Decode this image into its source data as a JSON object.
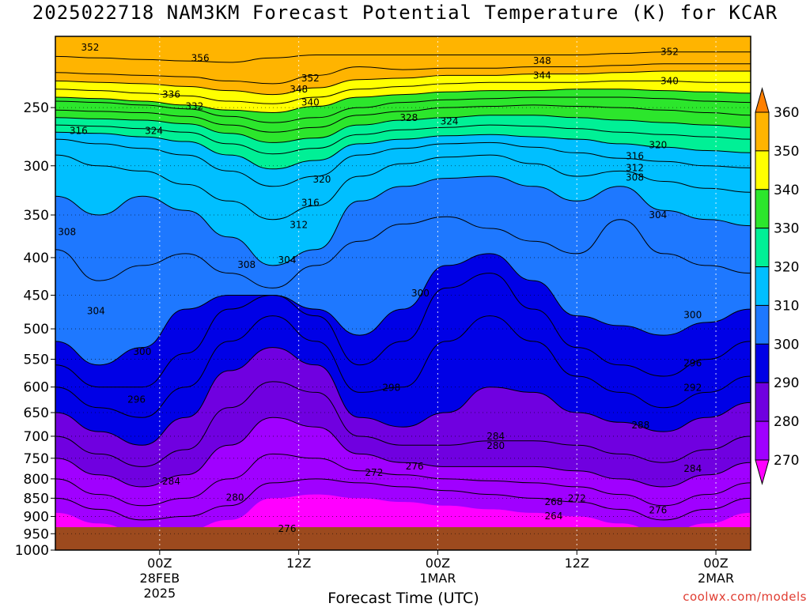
{
  "title": "2025022718 NAM3KM Forecast Potential Temperature (K) for KCAR",
  "xlabel": "Forecast Time (UTC)",
  "credit": "coolwx.com/models",
  "chart_data": {
    "type": "heatmap",
    "title": "2025022718 NAM3KM Forecast Potential Temperature (K) for KCAR",
    "xlabel": "Forecast Time (UTC)",
    "ylabel": "",
    "x_range_hours": [
      -3,
      57
    ],
    "y_range_hpa": [
      200,
      1000
    ],
    "y_scale": "log",
    "yticks": [
      250,
      300,
      350,
      400,
      450,
      500,
      550,
      600,
      650,
      700,
      750,
      800,
      850,
      900,
      950,
      1000
    ],
    "xticks": [
      {
        "hour": 6,
        "lines": [
          "00Z",
          "28FEB",
          "2025"
        ]
      },
      {
        "hour": 18,
        "lines": [
          "12Z"
        ]
      },
      {
        "hour": 30,
        "lines": [
          "00Z",
          "1MAR"
        ]
      },
      {
        "hour": 42,
        "lines": [
          "12Z"
        ]
      },
      {
        "hour": 54,
        "lines": [
          "00Z",
          "2MAR"
        ]
      }
    ],
    "colorbar": {
      "levels": [
        270,
        280,
        290,
        300,
        310,
        320,
        330,
        340,
        350,
        360
      ],
      "colors": [
        "#ff00ff",
        "#a000ff",
        "#7000e0",
        "#0000e6",
        "#1e78ff",
        "#00bfff",
        "#00f096",
        "#2ce62c",
        "#ffff00",
        "#ffb400",
        "#ff8000"
      ]
    },
    "contour_interval_K": 2,
    "contour_labels": [
      {
        "hour": 0,
        "hpa": 207,
        "value": 352
      },
      {
        "hour": 9.5,
        "hpa": 214,
        "value": 356
      },
      {
        "hour": 19,
        "hpa": 228,
        "value": 352
      },
      {
        "hour": 18,
        "hpa": 236,
        "value": 348
      },
      {
        "hour": 19,
        "hpa": 246,
        "value": 340
      },
      {
        "hour": 7,
        "hpa": 240,
        "value": 336
      },
      {
        "hour": 9,
        "hpa": 249,
        "value": 332
      },
      {
        "hour": 39,
        "hpa": 216,
        "value": 348
      },
      {
        "hour": 39,
        "hpa": 226,
        "value": 344
      },
      {
        "hour": 50,
        "hpa": 210,
        "value": 352
      },
      {
        "hour": 50,
        "hpa": 230,
        "value": 340
      },
      {
        "hour": 27.5,
        "hpa": 258,
        "value": 328
      },
      {
        "hour": 31,
        "hpa": 261,
        "value": 324
      },
      {
        "hour": -1,
        "hpa": 269,
        "value": 316
      },
      {
        "hour": 5.5,
        "hpa": 269,
        "value": 324
      },
      {
        "hour": 49,
        "hpa": 281,
        "value": 320
      },
      {
        "hour": 47,
        "hpa": 291,
        "value": 316
      },
      {
        "hour": 47,
        "hpa": 302,
        "value": 312
      },
      {
        "hour": 47,
        "hpa": 311,
        "value": 308
      },
      {
        "hour": 20,
        "hpa": 313,
        "value": 320
      },
      {
        "hour": 19,
        "hpa": 337,
        "value": 316
      },
      {
        "hour": 18,
        "hpa": 361,
        "value": 312
      },
      {
        "hour": 17,
        "hpa": 403,
        "value": 304
      },
      {
        "hour": 13.5,
        "hpa": 409,
        "value": 308
      },
      {
        "hour": -2,
        "hpa": 369,
        "value": 308
      },
      {
        "hour": 49,
        "hpa": 350,
        "value": 304
      },
      {
        "hour": 0.5,
        "hpa": 473,
        "value": 304
      },
      {
        "hour": 28.5,
        "hpa": 447,
        "value": 300
      },
      {
        "hour": 52,
        "hpa": 479,
        "value": 300
      },
      {
        "hour": 4.5,
        "hpa": 537,
        "value": 300
      },
      {
        "hour": 4,
        "hpa": 624,
        "value": 296
      },
      {
        "hour": 52,
        "hpa": 557,
        "value": 296
      },
      {
        "hour": 52,
        "hpa": 601,
        "value": 292
      },
      {
        "hour": 26,
        "hpa": 601,
        "value": 298
      },
      {
        "hour": 47.5,
        "hpa": 676,
        "value": 288
      },
      {
        "hour": 35,
        "hpa": 700,
        "value": 284
      },
      {
        "hour": 35,
        "hpa": 721,
        "value": 280
      },
      {
        "hour": 7,
        "hpa": 806,
        "value": 284
      },
      {
        "hour": 28,
        "hpa": 769,
        "value": 276
      },
      {
        "hour": 24.5,
        "hpa": 785,
        "value": 272
      },
      {
        "hour": 52,
        "hpa": 775,
        "value": 284
      },
      {
        "hour": 12.5,
        "hpa": 848,
        "value": 280
      },
      {
        "hour": 40,
        "hpa": 860,
        "value": 268
      },
      {
        "hour": 42,
        "hpa": 850,
        "value": 272
      },
      {
        "hour": 40,
        "hpa": 899,
        "value": 264
      },
      {
        "hour": 49,
        "hpa": 883,
        "value": 276
      },
      {
        "hour": 17,
        "hpa": 935,
        "value": 276
      }
    ],
    "isentrope_levels_hpa": [
      {
        "value": 356,
        "hpa": [
          213,
          214,
          215,
          216,
          217,
          214,
          212,
          212,
          212,
          212,
          212,
          212,
          212,
          211,
          210,
          210,
          210
        ]
      },
      {
        "value": 352,
        "hpa": [
          224,
          225,
          226,
          227,
          230,
          232,
          226,
          220,
          222,
          221,
          221,
          220,
          220,
          219,
          218,
          218,
          218
        ]
      },
      {
        "value": 348,
        "hpa": [
          230,
          231,
          232,
          234,
          237,
          240,
          235,
          229,
          228,
          226,
          226,
          225,
          225,
          224,
          223,
          223,
          223
        ]
      },
      {
        "value": 344,
        "hpa": [
          236,
          237,
          239,
          241,
          245,
          247,
          242,
          236,
          234,
          232,
          231,
          231,
          231,
          230,
          230,
          231,
          231
        ]
      },
      {
        "value": 340,
        "hpa": [
          242,
          243,
          245,
          248,
          252,
          254,
          249,
          242,
          240,
          238,
          237,
          237,
          236,
          236,
          237,
          238,
          239
        ]
      },
      {
        "value": 336,
        "hpa": [
          245,
          246,
          248,
          251,
          257,
          262,
          258,
          250,
          246,
          244,
          243,
          242,
          242,
          242,
          243,
          245,
          246
        ]
      },
      {
        "value": 332,
        "hpa": [
          252,
          253,
          254,
          257,
          264,
          270,
          266,
          256,
          253,
          250,
          249,
          248,
          249,
          250,
          252,
          254,
          256
        ]
      },
      {
        "value": 328,
        "hpa": [
          258,
          259,
          260,
          263,
          271,
          279,
          275,
          264,
          260,
          258,
          256,
          256,
          258,
          260,
          262,
          264,
          266
        ]
      },
      {
        "value": 324,
        "hpa": [
          264,
          265,
          267,
          270,
          280,
          289,
          284,
          272,
          268,
          266,
          264,
          265,
          267,
          270,
          272,
          274,
          276
        ]
      },
      {
        "value": 320,
        "hpa": [
          270,
          271,
          274,
          278,
          290,
          303,
          295,
          280,
          276,
          273,
          272,
          274,
          276,
          280,
          283,
          286,
          288
        ]
      },
      {
        "value": 316,
        "hpa": [
          276,
          280,
          284,
          290,
          305,
          320,
          310,
          290,
          284,
          280,
          279,
          283,
          288,
          293,
          296,
          300,
          302
        ]
      },
      {
        "value": 312,
        "hpa": [
          290,
          300,
          305,
          318,
          335,
          355,
          340,
          310,
          298,
          292,
          290,
          298,
          310,
          305,
          315,
          322,
          326
        ]
      },
      {
        "value": 308,
        "hpa": [
          330,
          350,
          330,
          345,
          375,
          410,
          390,
          335,
          320,
          312,
          310,
          320,
          335,
          320,
          345,
          355,
          362
        ]
      },
      {
        "value": 304,
        "hpa": [
          390,
          430,
          410,
          395,
          420,
          440,
          410,
          380,
          360,
          352,
          365,
          380,
          395,
          355,
          395,
          410,
          420
        ]
      },
      {
        "value": 300,
        "hpa": [
          520,
          560,
          530,
          470,
          450,
          450,
          470,
          510,
          470,
          410,
          395,
          430,
          480,
          495,
          510,
          490,
          470
        ]
      },
      {
        "value": 296,
        "hpa": [
          560,
          600,
          600,
          540,
          470,
          450,
          480,
          560,
          520,
          440,
          420,
          470,
          530,
          560,
          580,
          550,
          520
        ]
      },
      {
        "value": 292,
        "hpa": [
          600,
          640,
          660,
          600,
          520,
          480,
          520,
          610,
          600,
          520,
          480,
          520,
          580,
          610,
          640,
          610,
          580
        ]
      },
      {
        "value": 288,
        "hpa": [
          650,
          690,
          720,
          660,
          570,
          530,
          560,
          660,
          680,
          650,
          600,
          610,
          650,
          670,
          690,
          660,
          630
        ]
      },
      {
        "value": 284,
        "hpa": [
          700,
          740,
          770,
          730,
          640,
          590,
          610,
          700,
          720,
          720,
          710,
          710,
          720,
          740,
          760,
          730,
          700
        ]
      },
      {
        "value": 280,
        "hpa": [
          750,
          790,
          820,
          790,
          720,
          660,
          680,
          740,
          760,
          770,
          770,
          770,
          780,
          800,
          820,
          790,
          760
        ]
      },
      {
        "value": 276,
        "hpa": [
          800,
          840,
          870,
          850,
          800,
          740,
          750,
          780,
          790,
          800,
          805,
          810,
          820,
          840,
          870,
          840,
          810
        ]
      },
      {
        "value": 272,
        "hpa": [
          850,
          880,
          910,
          900,
          870,
          810,
          800,
          810,
          820,
          830,
          840,
          850,
          860,
          880,
          910,
          880,
          850
        ]
      }
    ]
  }
}
